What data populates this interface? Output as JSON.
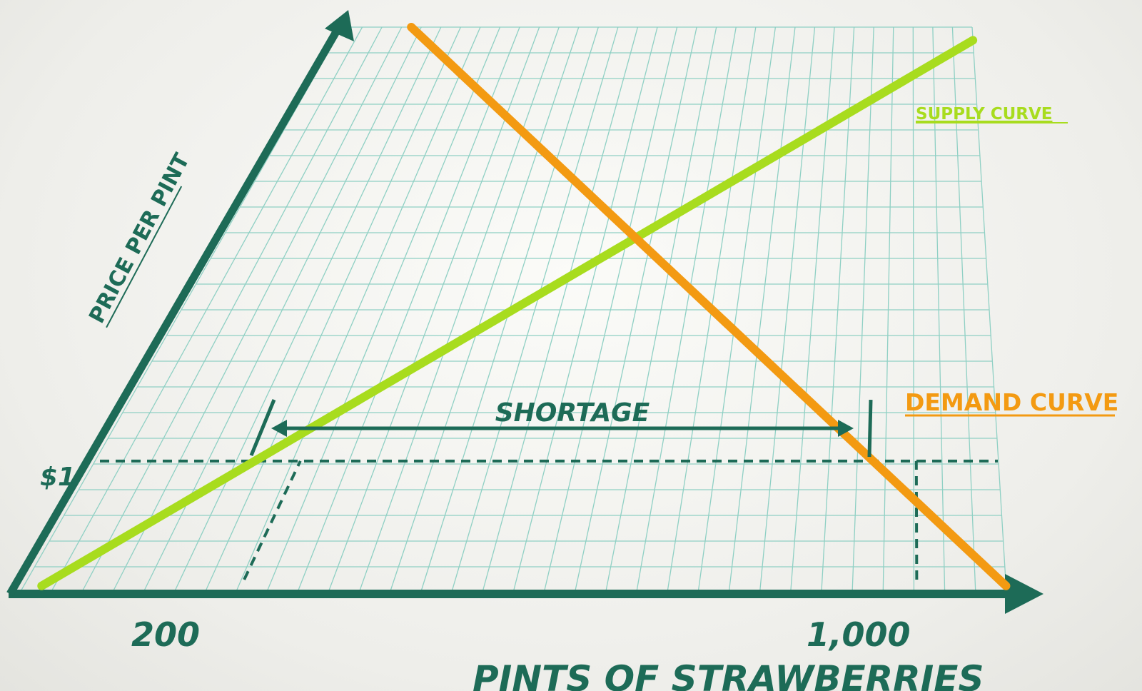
{
  "chart_data": {
    "type": "line",
    "title": "",
    "xlabel": "PINTS OF STRAWBERRIES",
    "ylabel": "PRICE PER PINT",
    "x_ticks": [
      {
        "value": 200,
        "label": "200"
      },
      {
        "value": 1000,
        "label": "1,000"
      }
    ],
    "y_ticks": [
      {
        "value": 1,
        "label": "$1"
      }
    ],
    "xlim": [
      0,
      1100
    ],
    "ylim": [
      0,
      4.3
    ],
    "grid": true,
    "series": [
      {
        "name": "SUPPLY CURVE",
        "color": "#a8dc1e",
        "points": [
          [
            20,
            0.05
          ],
          [
            1100,
            4.2
          ]
        ]
      },
      {
        "name": "DEMAND CURVE",
        "color": "#f39a12",
        "points": [
          [
            120,
            4.3
          ],
          [
            1100,
            0.05
          ]
        ]
      }
    ],
    "reference_lines": [
      {
        "kind": "horizontal",
        "y": 1,
        "style": "dashed"
      },
      {
        "kind": "vertical",
        "x": 250,
        "style": "dashed"
      },
      {
        "kind": "vertical",
        "x": 1000,
        "style": "dashed"
      }
    ],
    "annotations": [
      {
        "text": "SHORTAGE",
        "type": "double-arrow",
        "from_x": 270,
        "to_x": 980,
        "y": 1.3
      }
    ],
    "colors": {
      "axis": "#1d6b57",
      "grid": "#8fd0c4",
      "supply": "#a8dc1e",
      "demand": "#f39a12"
    }
  }
}
